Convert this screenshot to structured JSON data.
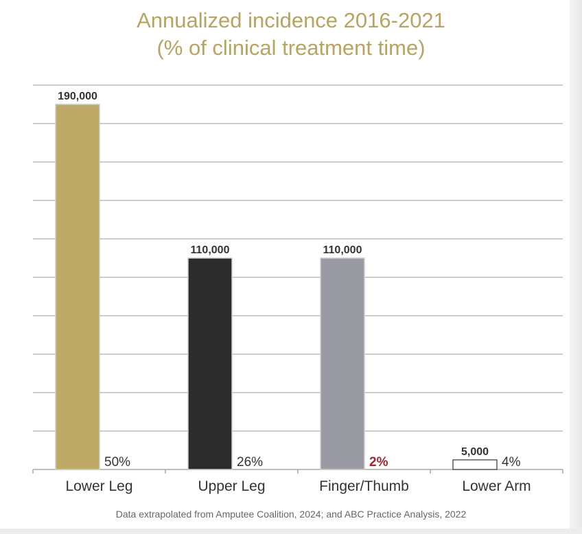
{
  "chart_data": {
    "type": "bar",
    "title_line1": "Annualized incidence 2016-2021",
    "title_line2": "(% of clinical treatment time)",
    "categories": [
      "Lower Leg",
      "Upper Leg",
      "Finger/Thumb",
      "Lower Arm"
    ],
    "values": [
      190000,
      110000,
      110000,
      5000
    ],
    "value_labels": [
      "190,000",
      "110,000",
      "110,000",
      "5,000"
    ],
    "percent_labels": [
      "50%",
      "26%",
      "2%",
      "4%"
    ],
    "percent_colors": [
      "#333333",
      "#333333",
      "#a3262a",
      "#333333"
    ],
    "percent_bold": [
      false,
      false,
      true,
      false
    ],
    "bar_colors": [
      "#bfa966",
      "#2a2b2a",
      "#9a9ba2",
      "#ffffff"
    ],
    "ylim": [
      0,
      200000
    ],
    "ytick_step": 20000,
    "grid": true,
    "xlabel": "",
    "ylabel": ""
  },
  "footnote": "Data extrapolated from Amputee Coalition, 2024; and ABC Practice Analysis, 2022"
}
